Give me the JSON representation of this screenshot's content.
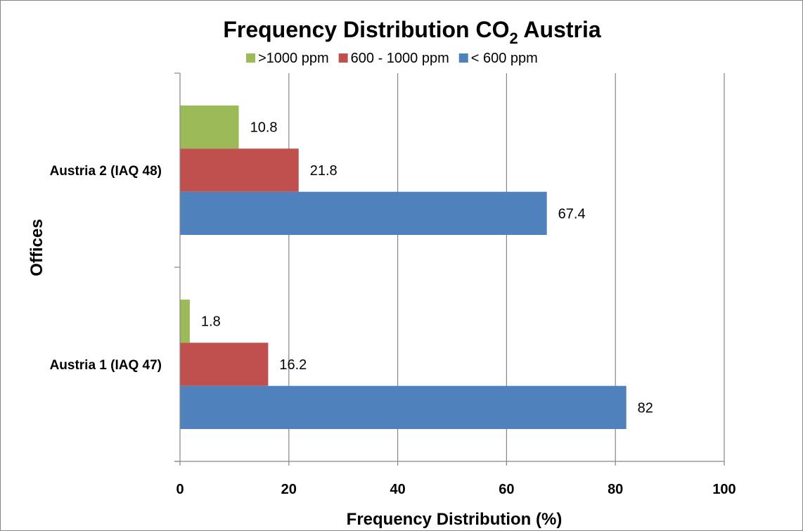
{
  "chart_data": {
    "type": "bar",
    "orientation": "horizontal",
    "title": {
      "prefix": "Frequency Distribution CO",
      "subscript": "2",
      "suffix": " Austria"
    },
    "xlabel": "Frequency Distribution (%)",
    "ylabel": "Offices",
    "xlim": [
      0,
      100
    ],
    "xticks": [
      "0",
      "20",
      "40",
      "60",
      "80",
      "100"
    ],
    "grid": "vertical-major",
    "legend_position": "top",
    "categories": [
      "Austria 2 (IAQ 48)",
      "Austria 1 (IAQ 47)"
    ],
    "series": [
      {
        "name": ">1000  ppm",
        "color": "#9BBB59",
        "values": [
          10.8,
          1.8
        ],
        "labels": [
          "10.8",
          "1.8"
        ]
      },
      {
        "name": "600 - 1000 ppm",
        "color": "#C0504D",
        "values": [
          21.8,
          16.2
        ],
        "labels": [
          "21.8",
          "16.2"
        ]
      },
      {
        "name": "< 600 ppm",
        "color": "#4F81BD",
        "values": [
          67.4,
          82
        ],
        "labels": [
          "67.4",
          "82"
        ]
      }
    ]
  }
}
